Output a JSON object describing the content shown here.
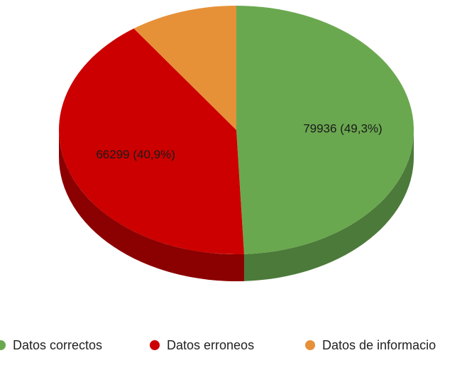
{
  "chart_data": {
    "type": "pie",
    "style": "3d",
    "legend_position": "bottom",
    "slices": [
      {
        "label": "Datos correctos",
        "value": 79936,
        "percent_label": "49,3%",
        "color": "#6aa84f",
        "side_color": "#4c7a3a"
      },
      {
        "label": "Datos erroneos",
        "value": 66299,
        "percent_label": "40,9%",
        "color": "#cc0000",
        "side_color": "#8b0000"
      },
      {
        "label": "Datos de informacion",
        "value": 15900,
        "percent_label": "",
        "color": "#e69138",
        "side_color": "#a8692a"
      }
    ]
  },
  "legend": {
    "items": [
      {
        "label": "Datos correctos",
        "color": "#6aa84f"
      },
      {
        "label": "Datos erroneos",
        "color": "#cc0000"
      },
      {
        "label": "Datos de informacio",
        "color": "#e69138"
      }
    ]
  }
}
